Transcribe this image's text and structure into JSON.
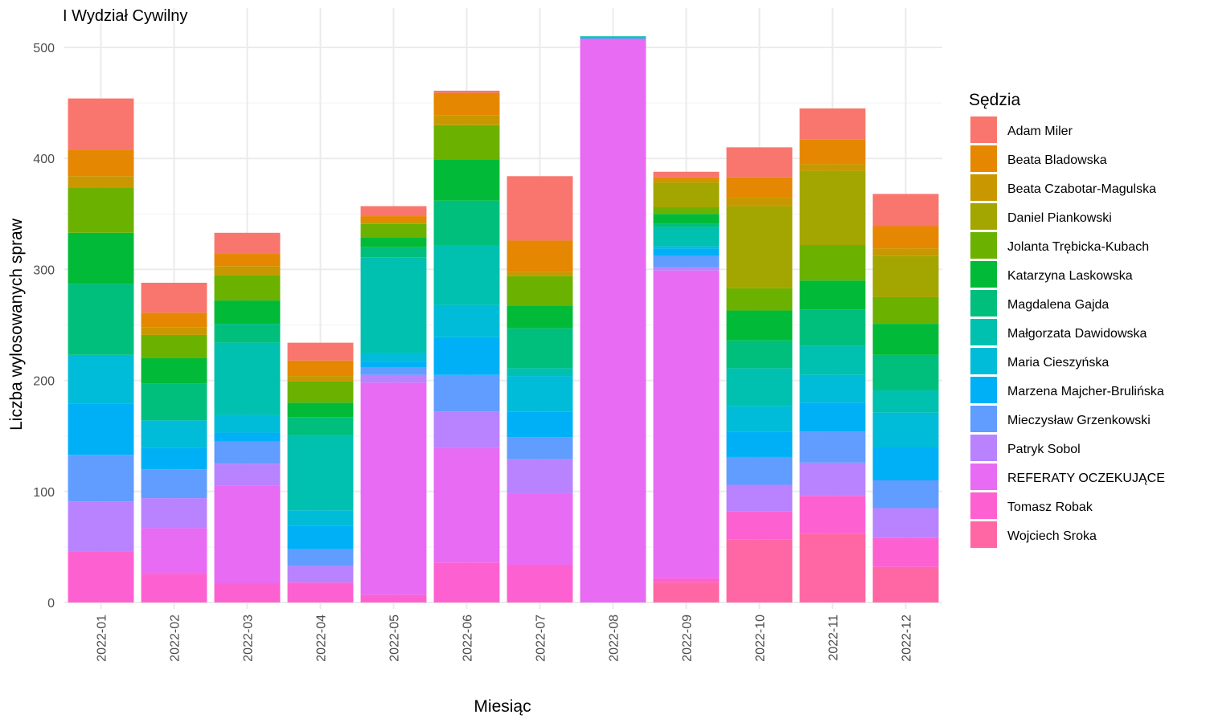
{
  "chart_data": {
    "type": "bar",
    "stacked": true,
    "title": "I Wydział Cywilny",
    "xlabel": "Miesiąc",
    "ylabel": "Liczba wylosowanych spraw",
    "legend_title": "Sędzia",
    "legend_position": "right",
    "grid": true,
    "ylim": [
      0,
      510
    ],
    "yticks": [
      0,
      100,
      200,
      300,
      400,
      500
    ],
    "categories": [
      "2022-01",
      "2022-02",
      "2022-03",
      "2022-04",
      "2022-05",
      "2022-06",
      "2022-07",
      "2022-08",
      "2022-09",
      "2022-10",
      "2022-11",
      "2022-12"
    ],
    "series": [
      {
        "name": "Adam Miler",
        "color": "#F8766D",
        "values": [
          46,
          27,
          19,
          16,
          9,
          2,
          58,
          0,
          5,
          27,
          28,
          29
        ]
      },
      {
        "name": "Beata Bladowska",
        "color": "#E58700",
        "values": [
          24,
          13,
          11,
          14,
          5,
          20,
          28,
          0,
          2,
          18,
          22,
          20
        ]
      },
      {
        "name": "Beata Czabotar-Magulska",
        "color": "#C99800",
        "values": [
          10,
          7,
          8,
          5,
          2,
          9,
          4,
          0,
          3,
          8,
          6,
          7
        ]
      },
      {
        "name": "Daniel Piankowski",
        "color": "#A3A500",
        "values": [
          0,
          0,
          0,
          0,
          0,
          0,
          0,
          0,
          22,
          74,
          67,
          37
        ]
      },
      {
        "name": "Jolanta Trębicka-Kubach",
        "color": "#6BB100",
        "values": [
          41,
          21,
          23,
          19,
          12,
          31,
          27,
          0,
          6,
          20,
          32,
          24
        ]
      },
      {
        "name": "Katarzyna Laskowska",
        "color": "#00BA38",
        "values": [
          46,
          23,
          21,
          13,
          9,
          37,
          20,
          0,
          9,
          27,
          26,
          28
        ]
      },
      {
        "name": "Magdalena Gajda",
        "color": "#00BF7D",
        "values": [
          64,
          33,
          17,
          17,
          9,
          40,
          36,
          0,
          3,
          25,
          33,
          32
        ]
      },
      {
        "name": "Małgorzata Dawidowska",
        "color": "#00C0AF",
        "values": [
          0,
          0,
          65,
          67,
          86,
          54,
          7,
          1,
          17,
          34,
          26,
          20
        ]
      },
      {
        "name": "Maria Cieszyńska",
        "color": "#00BCD8",
        "values": [
          44,
          25,
          16,
          14,
          8,
          29,
          32,
          1,
          2,
          23,
          25,
          31
        ]
      },
      {
        "name": "Marzena Majcher-Brulińska",
        "color": "#00B0F6",
        "values": [
          46,
          19,
          8,
          21,
          5,
          34,
          23,
          0,
          7,
          23,
          26,
          30
        ]
      },
      {
        "name": "Mieczysław Grzenkowski",
        "color": "#619CFF",
        "values": [
          42,
          26,
          20,
          15,
          7,
          33,
          20,
          0,
          10,
          25,
          28,
          25
        ]
      },
      {
        "name": "Patryk Sobol",
        "color": "#B983FF",
        "values": [
          45,
          27,
          20,
          15,
          7,
          33,
          31,
          0,
          3,
          24,
          30,
          27
        ]
      },
      {
        "name": "REFERATY OCZEKUJĄCE",
        "color": "#E76BF3",
        "values": [
          0,
          41,
          88,
          0,
          191,
          103,
          64,
          508,
          277,
          0,
          0,
          0
        ]
      },
      {
        "name": "Tomasz Robak",
        "color": "#FD61D1",
        "values": [
          46,
          26,
          17,
          18,
          7,
          36,
          34,
          0,
          4,
          25,
          34,
          26
        ]
      },
      {
        "name": "Wojciech Sroka",
        "color": "#FF67A4",
        "values": [
          0,
          0,
          0,
          0,
          0,
          0,
          0,
          0,
          18,
          57,
          62,
          32
        ]
      }
    ]
  }
}
